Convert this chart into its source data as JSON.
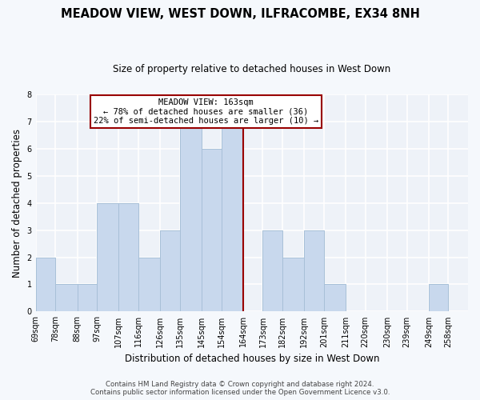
{
  "title": "MEADOW VIEW, WEST DOWN, ILFRACOMBE, EX34 8NH",
  "subtitle": "Size of property relative to detached houses in West Down",
  "xlabel": "Distribution of detached houses by size in West Down",
  "ylabel": "Number of detached properties",
  "bins": [
    69,
    78,
    88,
    97,
    107,
    116,
    126,
    135,
    145,
    154,
    164,
    173,
    182,
    192,
    201,
    211,
    220,
    230,
    239,
    249,
    258
  ],
  "bin_labels": [
    "69sqm",
    "78sqm",
    "88sqm",
    "97sqm",
    "107sqm",
    "116sqm",
    "126sqm",
    "135sqm",
    "145sqm",
    "154sqm",
    "164sqm",
    "173sqm",
    "182sqm",
    "192sqm",
    "201sqm",
    "211sqm",
    "220sqm",
    "230sqm",
    "239sqm",
    "249sqm",
    "258sqm"
  ],
  "counts": [
    2,
    1,
    1,
    4,
    4,
    2,
    3,
    7,
    6,
    7,
    0,
    3,
    2,
    3,
    1,
    0,
    0,
    0,
    0,
    1,
    0
  ],
  "bar_color": "#c8d8ed",
  "bar_edge_color": "#a8c0d8",
  "reference_line_color": "#990000",
  "reference_line_bin_index": 10,
  "annotation_text": "MEADOW VIEW: 163sqm\n← 78% of detached houses are smaller (36)\n22% of semi-detached houses are larger (10) →",
  "annotation_box_facecolor": "#ffffff",
  "annotation_box_edgecolor": "#990000",
  "ylim": [
    0,
    8
  ],
  "yticks": [
    0,
    1,
    2,
    3,
    4,
    5,
    6,
    7,
    8
  ],
  "plot_bg_color": "#eef2f8",
  "fig_bg_color": "#f5f8fc",
  "grid_color": "#ffffff",
  "footer_line1": "Contains HM Land Registry data © Crown copyright and database right 2024.",
  "footer_line2": "Contains public sector information licensed under the Open Government Licence v3.0.",
  "title_fontsize": 10.5,
  "subtitle_fontsize": 8.5,
  "ylabel_fontsize": 8.5,
  "xlabel_fontsize": 8.5,
  "tick_fontsize": 7,
  "annot_fontsize": 7.5,
  "footer_fontsize": 6.2
}
